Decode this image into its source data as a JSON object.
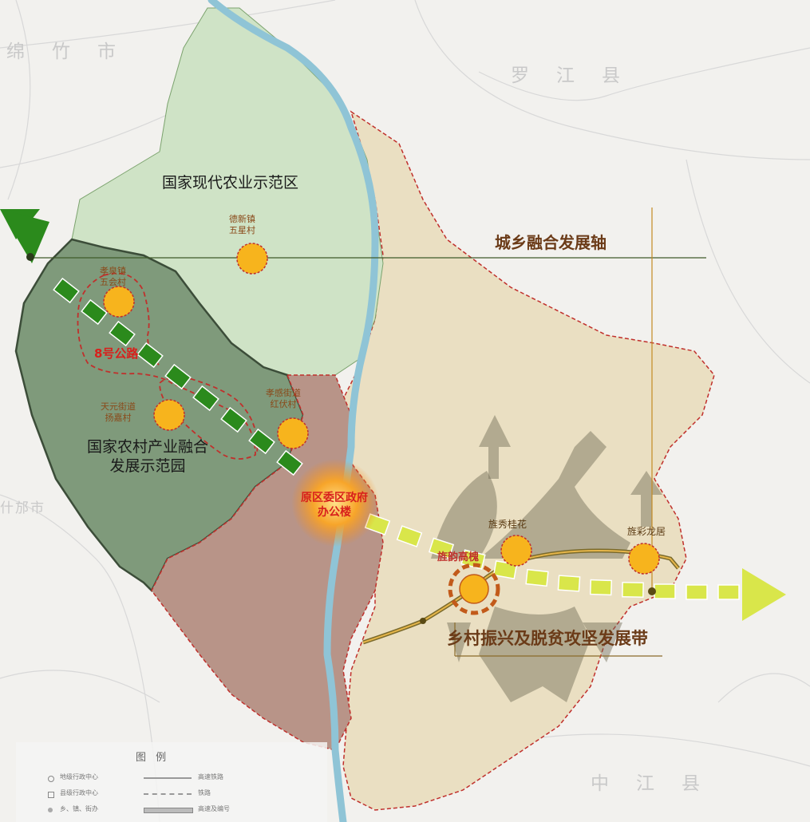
{
  "map": {
    "city_names": {
      "mianzhu": "绵竹市",
      "luojiang": "罗江县",
      "shifang": "什邡市",
      "zhongjiang": "中江县"
    },
    "zones": {
      "agri_demo": "国家现代农业示范区",
      "rural_fusion_line1": "国家农村产业融合",
      "rural_fusion_line2": "发展示范园"
    },
    "axes": {
      "urban_rural": "城乡融合发展轴",
      "revitalization": "乡村振兴及脱贫攻坚发展带",
      "road_8": "8号公路"
    },
    "villages": [
      {
        "line1": "德新镇",
        "line2": "五星村"
      },
      {
        "line1": "孝泉镇",
        "line2": "五会村"
      },
      {
        "line1": "天元街道",
        "line2": "扬嘉村"
      },
      {
        "line1": "孝感街道",
        "line2": "红伏村"
      },
      {
        "line1": "旌秀桂花",
        "line2": ""
      },
      {
        "line1": "旌彩龙居",
        "line2": ""
      },
      {
        "line1": "旌韵高槐",
        "line2": ""
      }
    ],
    "center": {
      "line1": "原区委区政府",
      "line2": "办公楼"
    },
    "legend": {
      "title": "图 例",
      "items": [
        "地级行政中心",
        "县级行政中心",
        "乡、镇、街办",
        "高速铁路",
        "铁路",
        "高速及编号"
      ]
    },
    "colors": {
      "agri_zone": "#cfe3c6",
      "fusion_zone": "#7f9a7b",
      "urban_zone": "#b89488",
      "east_zone": "#eadfc2",
      "river": "#8fc4d6",
      "axis_green": "#2b8a1c",
      "axis_yellow": "#d9e64a",
      "node": "#f7b41d",
      "boundary": "#c0302c"
    }
  }
}
